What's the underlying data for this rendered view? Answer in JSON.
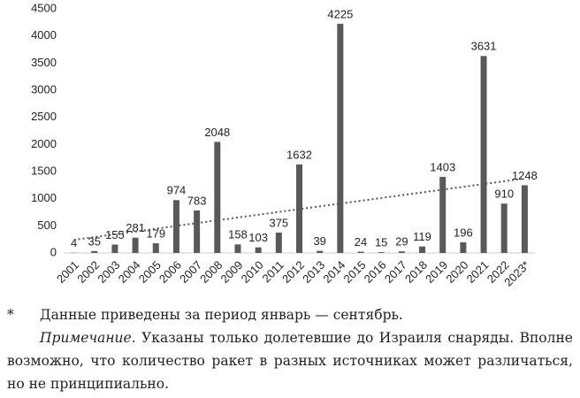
{
  "chart_data": {
    "type": "bar",
    "categories": [
      "2001",
      "2002",
      "2003",
      "2004",
      "2005",
      "2006",
      "2007",
      "2008",
      "2009",
      "2010",
      "2011",
      "2012",
      "2013",
      "2014",
      "2015",
      "2016",
      "2017",
      "2018",
      "2019",
      "2020",
      "2021",
      "2022",
      "2023*"
    ],
    "values": [
      4,
      35,
      155,
      281,
      179,
      974,
      783,
      2048,
      158,
      103,
      375,
      1632,
      39,
      4225,
      24,
      15,
      29,
      119,
      1403,
      196,
      3631,
      910,
      1248
    ],
    "color": "#595959",
    "ylim": [
      0,
      4500
    ],
    "yticks": [
      0,
      500,
      1000,
      1500,
      2000,
      2500,
      3000,
      3500,
      4000,
      4500
    ],
    "grid": false,
    "trendline": true
  },
  "footnote": {
    "marker": "*",
    "text": "Данные приведены за период январь — сентябрь."
  },
  "note": {
    "label": "Примечание.",
    "text": "Указаны только долетевшие до Израиля снаряды. Вполне возможно, что количество ракет в разных источниках может различаться, но не принципиально."
  }
}
